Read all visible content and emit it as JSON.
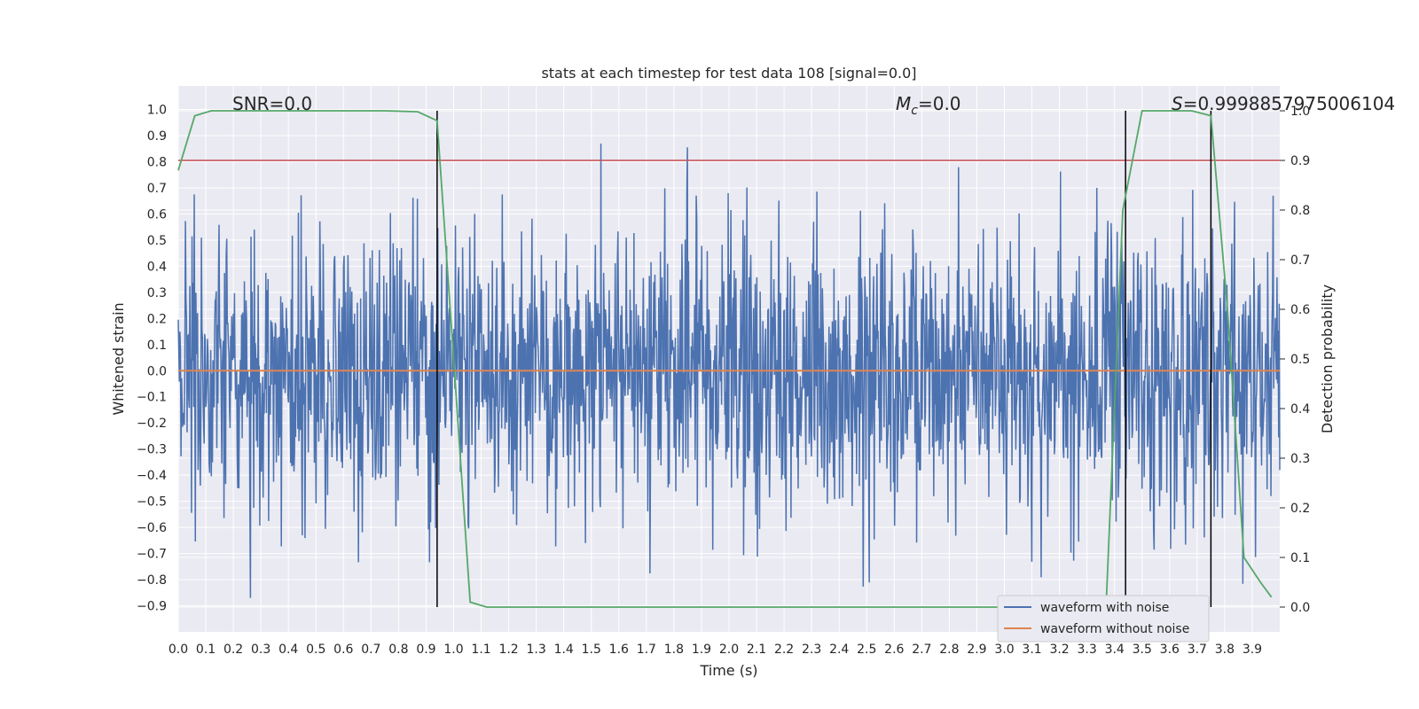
{
  "chart_data": {
    "type": "line",
    "title": "stats at each timestep for test data 108 [signal=0.0]",
    "xlabel": "Time (s)",
    "ylabel": "Whitened strain",
    "y2label": "Detection probability",
    "xlim": [
      0.0,
      4.0
    ],
    "ylim": [
      -1.0,
      1.09
    ],
    "y2lim": [
      -0.05,
      1.05
    ],
    "xticks": [
      "0.0",
      "0.1",
      "0.2",
      "0.3",
      "0.4",
      "0.5",
      "0.6",
      "0.7",
      "0.8",
      "0.9",
      "1.0",
      "1.1",
      "1.2",
      "1.3",
      "1.4",
      "1.5",
      "1.6",
      "1.7",
      "1.8",
      "1.9",
      "2.0",
      "2.1",
      "2.2",
      "2.3",
      "2.4",
      "2.5",
      "2.6",
      "2.7",
      "2.8",
      "2.9",
      "3.0",
      "3.1",
      "3.2",
      "3.3",
      "3.4",
      "3.5",
      "3.6",
      "3.7",
      "3.8",
      "3.9"
    ],
    "yticks": [
      "1.0",
      "0.9",
      "0.8",
      "0.7",
      "0.6",
      "0.5",
      "0.4",
      "0.3",
      "0.2",
      "0.1",
      "0.0",
      "−0.1",
      "−0.2",
      "−0.3",
      "−0.4",
      "−0.5",
      "−0.6",
      "−0.7",
      "−0.8",
      "−0.9"
    ],
    "y2ticks": [
      "1.0",
      "0.9",
      "0.8",
      "0.7",
      "0.6",
      "0.5",
      "0.4",
      "0.3",
      "0.2",
      "0.1",
      "0.0"
    ],
    "grid": true,
    "legend_position": "lower-right",
    "annotations": {
      "snr": "SNR=0.0",
      "mc_symbol": "M",
      "mc_sub": "c",
      "mc_value": "=0.0",
      "s_label": "S",
      "s_value": "=0.999885797500610​4"
    },
    "series": [
      {
        "name": "waveform with noise",
        "color": "#4c72b0",
        "noise": {
          "seed": 108,
          "n_samples": 2000,
          "sigma": 0.27,
          "ymin": -0.87,
          "ymax": 1.0
        }
      },
      {
        "name": "waveform without noise",
        "color": "#dd8452",
        "x": [
          0.0,
          4.0
        ],
        "y": [
          0.0,
          0.0
        ]
      },
      {
        "name": "detection probability",
        "color": "#55a868",
        "axis": "right",
        "x": [
          0.0,
          0.06,
          0.12,
          0.25,
          0.5,
          0.75,
          0.87,
          0.94,
          1.0,
          1.06,
          1.12,
          1.5,
          2.0,
          2.5,
          3.0,
          3.25,
          3.37,
          3.43,
          3.5,
          3.56,
          3.62,
          3.68,
          3.75,
          3.81,
          3.87,
          3.93,
          3.97
        ],
        "y": [
          0.88,
          0.99,
          1.0,
          1.0,
          1.0,
          1.0,
          0.998,
          0.98,
          0.5,
          0.01,
          0.0,
          0.0,
          0.0,
          0.0,
          0.0,
          0.0,
          0.01,
          0.8,
          1.0,
          1.0,
          1.0,
          1.0,
          0.99,
          0.6,
          0.1,
          0.05,
          0.02
        ]
      }
    ],
    "threshold": {
      "value": 0.9,
      "axis": "right",
      "color": "#c44e52"
    },
    "vlines": {
      "x": [
        0.94,
        3.44,
        3.75
      ],
      "color": "#000000"
    }
  },
  "legend": {
    "noise_label": "waveform with noise",
    "clean_label": "waveform without noise"
  }
}
